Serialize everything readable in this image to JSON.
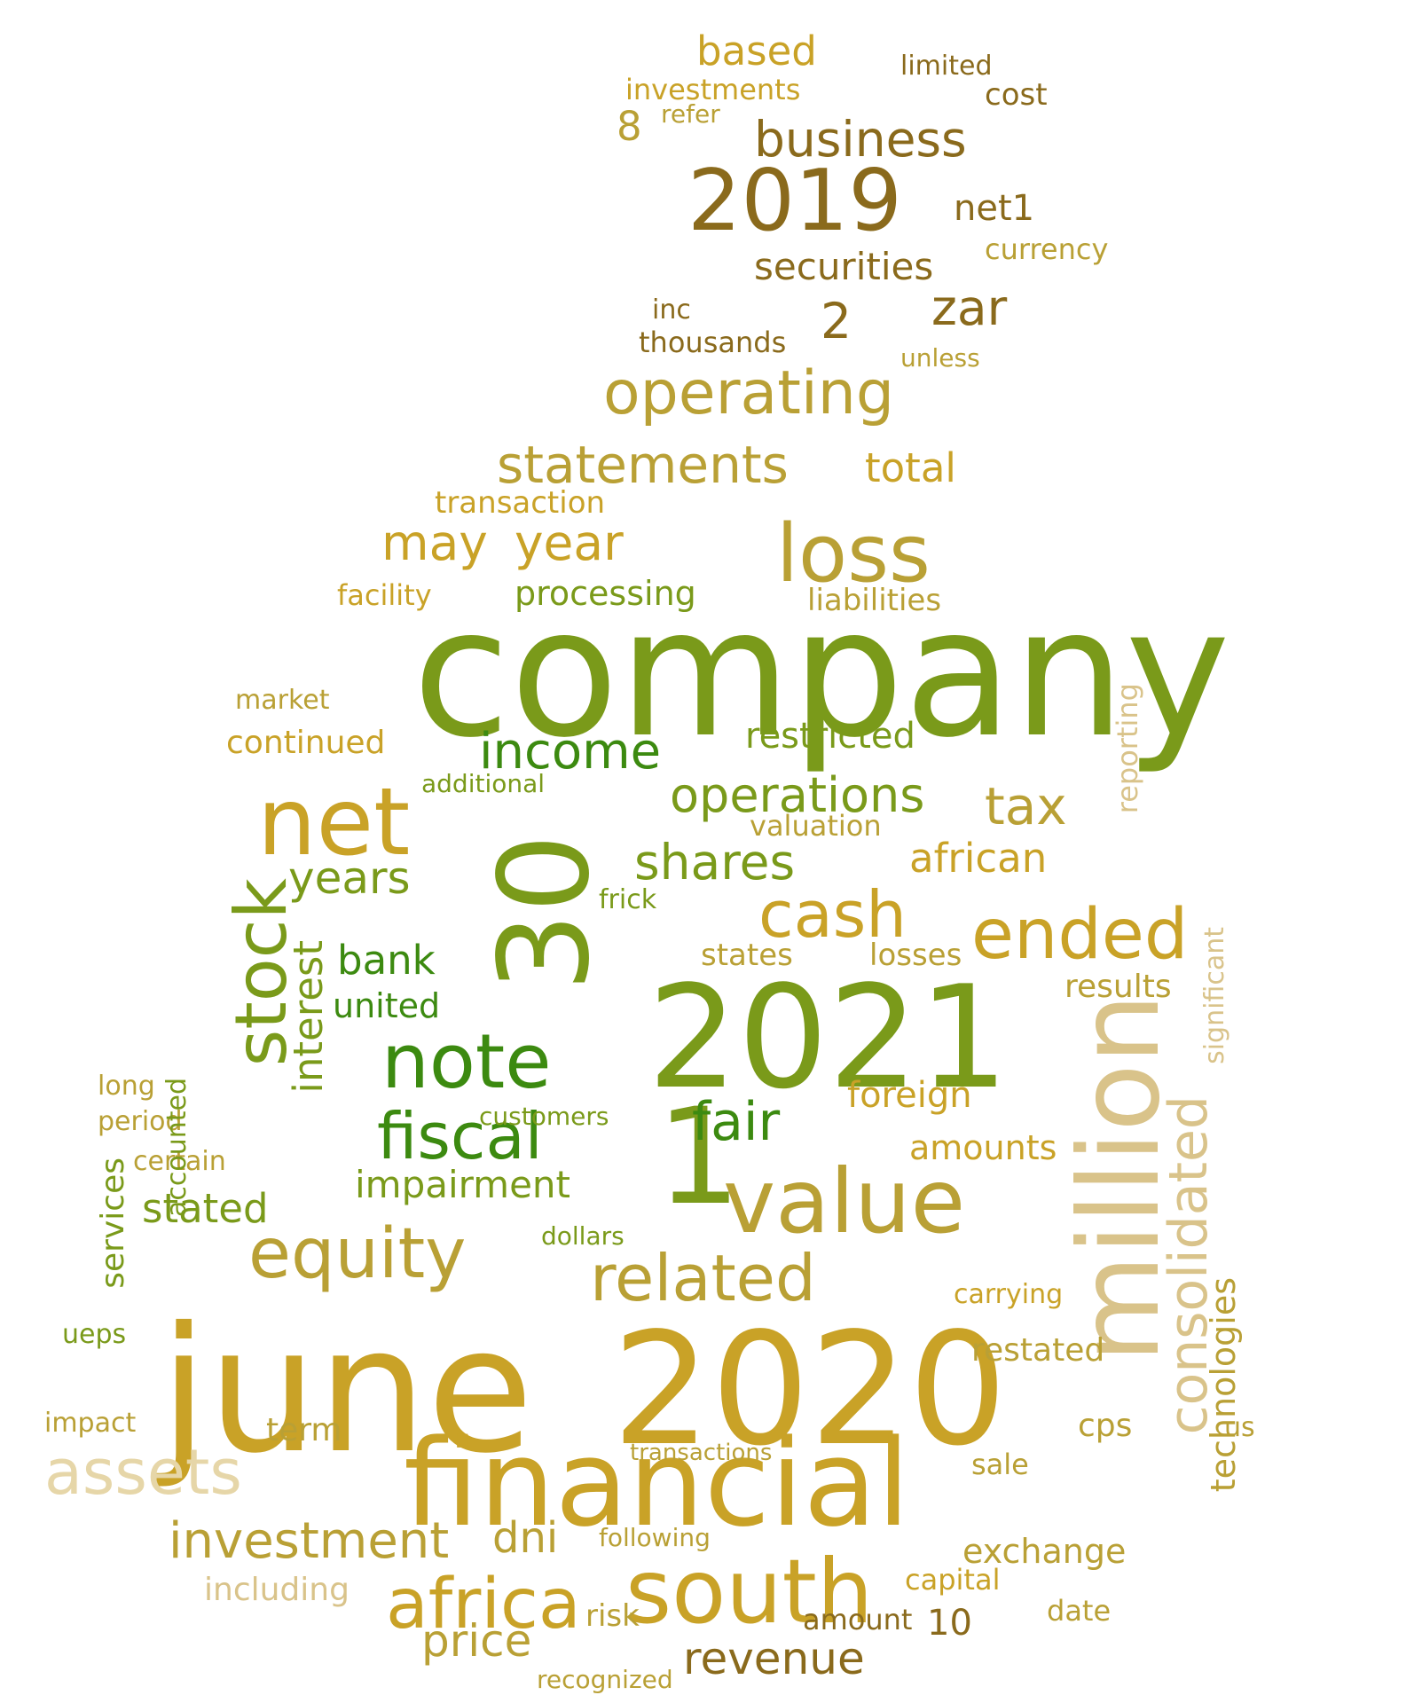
{
  "palette": [
    "#7a9a1a",
    "#3c8a10",
    "#c9a227",
    "#a88c2a",
    "#d9c38a",
    "#e6d6a8",
    "#8a6a1c",
    "#b9a035"
  ],
  "words": [
    {
      "text": "company",
      "c": 0,
      "v": false
    },
    {
      "text": "june",
      "c": 2,
      "v": false
    },
    {
      "text": "2020",
      "c": 2,
      "v": false
    },
    {
      "text": "2021",
      "c": 0,
      "v": false
    },
    {
      "text": "financial",
      "c": 2,
      "v": false
    },
    {
      "text": "30",
      "c": 0,
      "v": true
    },
    {
      "text": "million",
      "c": 4,
      "v": true
    },
    {
      "text": "south",
      "c": 2,
      "v": false
    },
    {
      "text": "net",
      "c": 2,
      "v": false
    },
    {
      "text": "value",
      "c": 7,
      "v": false
    },
    {
      "text": "1",
      "c": 0,
      "v": false
    },
    {
      "text": "2019",
      "c": 6,
      "v": false
    },
    {
      "text": "loss",
      "c": 7,
      "v": false
    },
    {
      "text": "note",
      "c": 1,
      "v": false
    },
    {
      "text": "africa",
      "c": 2,
      "v": false
    },
    {
      "text": "stock",
      "c": 0,
      "v": true
    },
    {
      "text": "equity",
      "c": 7,
      "v": false
    },
    {
      "text": "related",
      "c": 7,
      "v": false
    },
    {
      "text": "fiscal",
      "c": 1,
      "v": false
    },
    {
      "text": "ended",
      "c": 2,
      "v": false
    },
    {
      "text": "cash",
      "c": 2,
      "v": false
    },
    {
      "text": "operating",
      "c": 7,
      "v": false
    },
    {
      "text": "consolidated",
      "c": 4,
      "v": true
    },
    {
      "text": "assets",
      "c": 5,
      "v": false
    },
    {
      "text": "investment",
      "c": 7,
      "v": false
    },
    {
      "text": "statements",
      "c": 7,
      "v": false
    },
    {
      "text": "income",
      "c": 1,
      "v": false
    },
    {
      "text": "operations",
      "c": 0,
      "v": false
    },
    {
      "text": "fair",
      "c": 1,
      "v": false
    },
    {
      "text": "business",
      "c": 6,
      "v": false
    },
    {
      "text": "year",
      "c": 2,
      "v": false
    },
    {
      "text": "may",
      "c": 2,
      "v": false
    },
    {
      "text": "tax",
      "c": 7,
      "v": false
    },
    {
      "text": "impairment",
      "c": 0,
      "v": false
    },
    {
      "text": "shares",
      "c": 0,
      "v": false
    },
    {
      "text": "interest",
      "c": 0,
      "v": true
    },
    {
      "text": "years",
      "c": 0,
      "v": false
    },
    {
      "text": "securities",
      "c": 6,
      "v": false
    },
    {
      "text": "zar",
      "c": 6,
      "v": false
    },
    {
      "text": "price",
      "c": 7,
      "v": false
    },
    {
      "text": "revenue",
      "c": 6,
      "v": false
    },
    {
      "text": "based",
      "c": 2,
      "v": false
    },
    {
      "text": "restricted",
      "c": 0,
      "v": false
    },
    {
      "text": "technologies",
      "c": 7,
      "v": true
    },
    {
      "text": "bank",
      "c": 1,
      "v": false
    },
    {
      "text": "stated",
      "c": 0,
      "v": false
    },
    {
      "text": "african",
      "c": 2,
      "v": false
    },
    {
      "text": "dni",
      "c": 7,
      "v": false
    },
    {
      "text": "exchange",
      "c": 7,
      "v": false
    },
    {
      "text": "foreign",
      "c": 2,
      "v": false
    },
    {
      "text": "services",
      "c": 0,
      "v": true
    },
    {
      "text": "total",
      "c": 2,
      "v": false
    },
    {
      "text": "processing",
      "c": 0,
      "v": false
    },
    {
      "text": "united",
      "c": 1,
      "v": false
    },
    {
      "text": "amounts",
      "c": 2,
      "v": false
    },
    {
      "text": "net1",
      "c": 6,
      "v": false
    },
    {
      "text": "2",
      "c": 6,
      "v": false
    },
    {
      "text": "8",
      "c": 7,
      "v": false
    },
    {
      "text": "restated",
      "c": 7,
      "v": false
    },
    {
      "text": "results",
      "c": 7,
      "v": false
    },
    {
      "text": "term",
      "c": 7,
      "v": false
    },
    {
      "text": "including",
      "c": 4,
      "v": false
    },
    {
      "text": "reporting",
      "c": 4,
      "v": true
    },
    {
      "text": "significant",
      "c": 4,
      "v": true
    },
    {
      "text": "investments",
      "c": 2,
      "v": false
    },
    {
      "text": "continued",
      "c": 2,
      "v": false
    },
    {
      "text": "transaction",
      "c": 2,
      "v": false
    },
    {
      "text": "losses",
      "c": 7,
      "v": false
    },
    {
      "text": "states",
      "c": 7,
      "v": false
    },
    {
      "text": "10",
      "c": 6,
      "v": false
    },
    {
      "text": "cps",
      "c": 7,
      "v": false
    },
    {
      "text": "carrying",
      "c": 2,
      "v": false
    },
    {
      "text": "liabilities",
      "c": 7,
      "v": false
    },
    {
      "text": "valuation",
      "c": 7,
      "v": false
    },
    {
      "text": "currency",
      "c": 7,
      "v": false
    },
    {
      "text": "thousands",
      "c": 6,
      "v": false
    },
    {
      "text": "facility",
      "c": 2,
      "v": false
    },
    {
      "text": "capital",
      "c": 2,
      "v": false
    },
    {
      "text": "date",
      "c": 7,
      "v": false
    },
    {
      "text": "sale",
      "c": 7,
      "v": false
    },
    {
      "text": "risk",
      "c": 7,
      "v": false
    },
    {
      "text": "amount",
      "c": 6,
      "v": false
    },
    {
      "text": "customers",
      "c": 0,
      "v": false
    },
    {
      "text": "dollars",
      "c": 0,
      "v": false
    },
    {
      "text": "additional",
      "c": 0,
      "v": false
    },
    {
      "text": "market",
      "c": 7,
      "v": false
    },
    {
      "text": "impact",
      "c": 7,
      "v": false
    },
    {
      "text": "long",
      "c": 7,
      "v": false
    },
    {
      "text": "period",
      "c": 7,
      "v": false
    },
    {
      "text": "certain",
      "c": 7,
      "v": false
    },
    {
      "text": "accounted",
      "c": 0,
      "v": true
    },
    {
      "text": "cost",
      "c": 6,
      "v": false
    },
    {
      "text": "limited",
      "c": 6,
      "v": false
    },
    {
      "text": "unless",
      "c": 7,
      "v": false
    },
    {
      "text": "refer",
      "c": 7,
      "v": false
    },
    {
      "text": "inc",
      "c": 6,
      "v": false
    },
    {
      "text": "frick",
      "c": 0,
      "v": false
    },
    {
      "text": "ueps",
      "c": 0,
      "v": false
    },
    {
      "text": "us",
      "c": 7,
      "v": false
    },
    {
      "text": "recognized",
      "c": 7,
      "v": false
    },
    {
      "text": "following",
      "c": 7,
      "v": false
    },
    {
      "text": "transactions",
      "c": 7,
      "v": false
    }
  ]
}
